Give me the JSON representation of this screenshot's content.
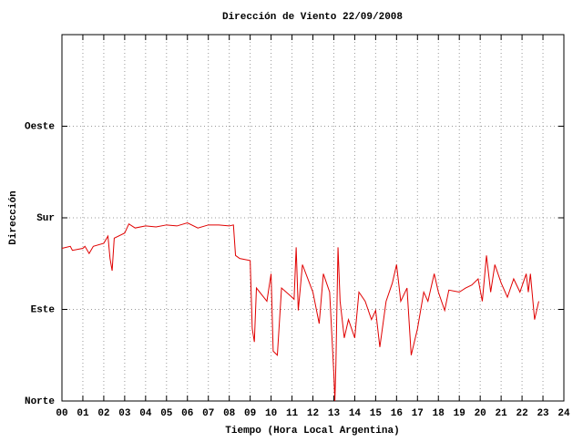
{
  "chart_data": {
    "type": "line",
    "title": "Dirección de Viento 22/09/2008",
    "x_label": "Tiempo (Hora Local Argentina)",
    "y_label": "Dirección",
    "color": "#e00000",
    "grid": true,
    "xlim": [
      0,
      24
    ],
    "ylim": [
      0,
      360
    ],
    "xticks": [
      {
        "value": 0,
        "label": "00"
      },
      {
        "value": 1,
        "label": "01"
      },
      {
        "value": 2,
        "label": "02"
      },
      {
        "value": 3,
        "label": "03"
      },
      {
        "value": 4,
        "label": "04"
      },
      {
        "value": 5,
        "label": "05"
      },
      {
        "value": 6,
        "label": "06"
      },
      {
        "value": 7,
        "label": "07"
      },
      {
        "value": 8,
        "label": "08"
      },
      {
        "value": 9,
        "label": "09"
      },
      10,
      11,
      12,
      13,
      14,
      15,
      16,
      17,
      18,
      19,
      20,
      21,
      22,
      23,
      24
    ],
    "yticks": [
      {
        "value": 0,
        "label": "Norte"
      },
      {
        "value": 90,
        "label": "Este"
      },
      {
        "value": 180,
        "label": "Sur"
      },
      {
        "value": 270,
        "label": "Oeste"
      }
    ],
    "x": [
      0,
      0.4,
      0.5,
      1.0,
      1.1,
      1.3,
      1.5,
      2.0,
      2.2,
      2.3,
      2.4,
      2.5,
      3.0,
      3.2,
      3.5,
      4.0,
      4.5,
      5.0,
      5.5,
      6.0,
      6.5,
      7.0,
      7.5,
      8.0,
      8.2,
      8.3,
      8.5,
      9.0,
      9.1,
      9.2,
      9.3,
      9.8,
      10.0,
      10.1,
      10.3,
      10.5,
      11.0,
      11.1,
      11.2,
      11.3,
      11.5,
      12.0,
      12.3,
      12.5,
      12.8,
      13.0,
      13.05,
      13.1,
      13.2,
      13.3,
      13.5,
      13.7,
      14.0,
      14.2,
      14.5,
      14.8,
      15.0,
      15.2,
      15.5,
      15.8,
      16.0,
      16.2,
      16.5,
      16.7,
      17.0,
      17.3,
      17.5,
      17.8,
      18.0,
      18.3,
      18.5,
      19.0,
      19.3,
      19.6,
      19.9,
      20.1,
      20.3,
      20.5,
      20.7,
      21.0,
      21.3,
      21.6,
      21.9,
      22.2,
      22.3,
      22.4,
      22.6,
      22.8
    ],
    "values": [
      150,
      152,
      148,
      150,
      152,
      145,
      152,
      155,
      162,
      140,
      128,
      160,
      165,
      174,
      170,
      172,
      171,
      173,
      172,
      175,
      170,
      173,
      173,
      172,
      173,
      143,
      140,
      138,
      71,
      58,
      111,
      98,
      125,
      49,
      45,
      111,
      102,
      100,
      151,
      89,
      134,
      107,
      76,
      125,
      107,
      27,
      0,
      36,
      151,
      98,
      62,
      80,
      62,
      107,
      98,
      80,
      89,
      53,
      98,
      116,
      134,
      98,
      111,
      45,
      71,
      107,
      98,
      125,
      107,
      89,
      109,
      107,
      111,
      114,
      120,
      98,
      143,
      107,
      134,
      116,
      102,
      120,
      107,
      125,
      107,
      125,
      80,
      98
    ]
  }
}
